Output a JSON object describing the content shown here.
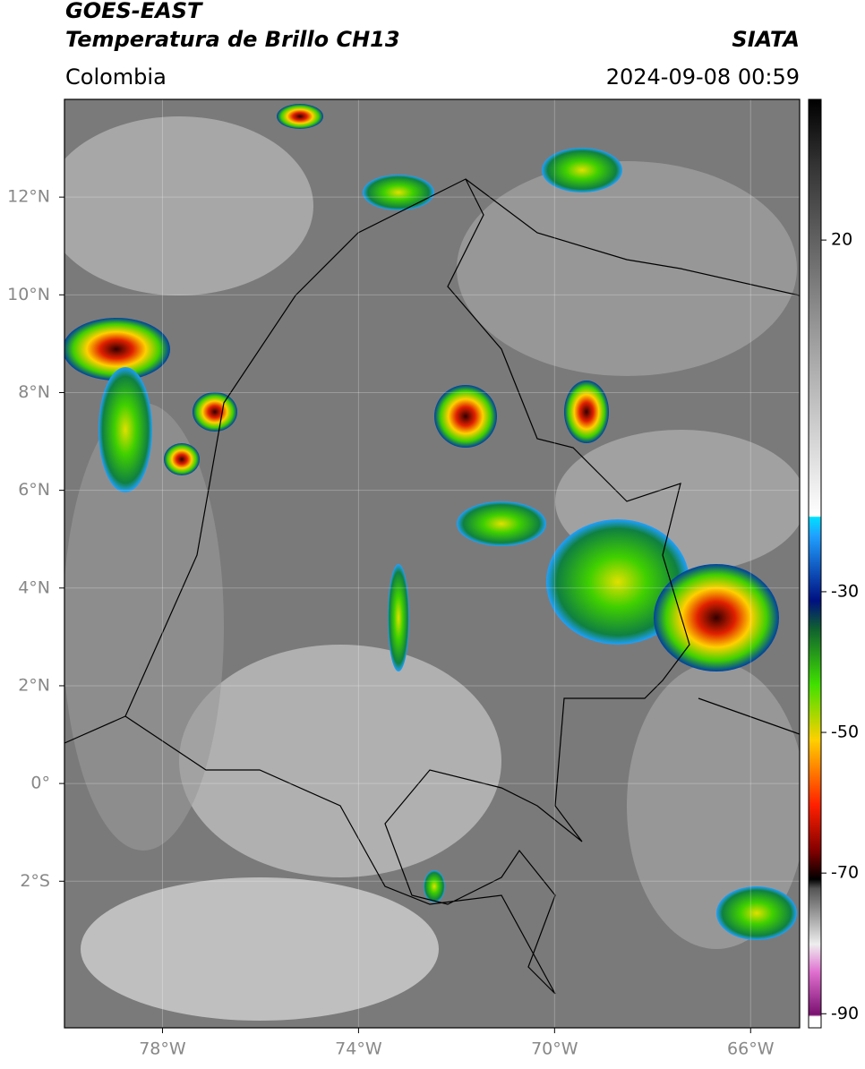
{
  "header": {
    "title": "GOES-EAST",
    "subtitle": "Temperatura de Brillo CH13",
    "source": "SIATA",
    "region": "Colombia",
    "datetime": "2024-09-08 00:59"
  },
  "map": {
    "xlim": [
      -80,
      -65
    ],
    "ylim": [
      -5,
      14
    ],
    "xticks": [
      {
        "value": -78,
        "label": "78°W"
      },
      {
        "value": -74,
        "label": "74°W"
      },
      {
        "value": -70,
        "label": "70°W"
      },
      {
        "value": -66,
        "label": "66°W"
      }
    ],
    "yticks": [
      {
        "value": 12,
        "label": "12°N"
      },
      {
        "value": 10,
        "label": "10°N"
      },
      {
        "value": 8,
        "label": "8°N"
      },
      {
        "value": 6,
        "label": "6°N"
      },
      {
        "value": 4,
        "label": "4°N"
      },
      {
        "value": 2,
        "label": "2°N"
      },
      {
        "value": 0,
        "label": "0°"
      },
      {
        "value": -2,
        "label": "2°S"
      }
    ]
  },
  "colorbar": {
    "lim": [
      -92,
      40
    ],
    "ticks": [
      20,
      -30,
      -50,
      -70,
      -90
    ]
  }
}
